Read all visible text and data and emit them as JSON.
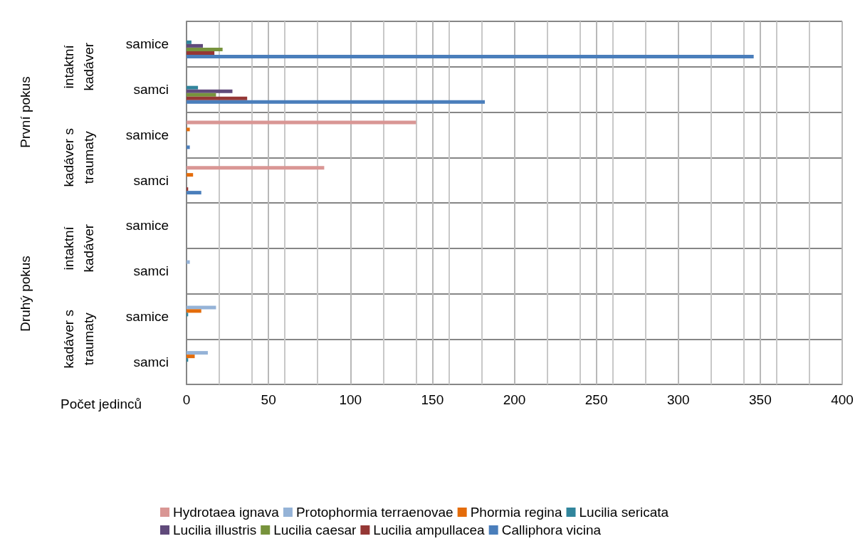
{
  "chart_data": {
    "type": "bar",
    "orientation": "horizontal",
    "xlabel": "Počet jedinců",
    "categories": [
      "samice",
      "samci",
      "samice",
      "samci",
      "samice",
      "samci",
      "samice",
      "samci"
    ],
    "annotations": [
      "První pokus",
      "Druhý pokus",
      "intaktní kadáver",
      "kadáver s traumaty",
      "intaktní kadáver",
      "kadáver s traumaty"
    ],
    "series": [
      {
        "name": "Hydrotaea ignava",
        "color": "#d99694",
        "values": [
          0,
          0,
          140,
          84,
          0,
          0,
          0,
          0
        ]
      },
      {
        "name": "Protophormia terraenovae",
        "color": "#95b3d7",
        "values": [
          0,
          0,
          0,
          0,
          0,
          2,
          18,
          13
        ]
      },
      {
        "name": "Phormia regina",
        "color": "#e46c0a",
        "values": [
          0,
          0,
          2,
          4,
          0,
          0,
          9,
          5
        ]
      },
      {
        "name": "Lucilia sericata",
        "color": "#31859c",
        "values": [
          3,
          7,
          0,
          0,
          0,
          0,
          1,
          1
        ]
      },
      {
        "name": "Lucilia illustris",
        "color": "#604a7b",
        "values": [
          10,
          28,
          0,
          0,
          0,
          0,
          0,
          0
        ]
      },
      {
        "name": "Lucilia caesar",
        "color": "#77933c",
        "values": [
          22,
          18,
          0,
          0,
          0,
          0,
          0,
          0
        ]
      },
      {
        "name": "Lucilia ampullacea",
        "color": "#953735",
        "values": [
          17,
          37,
          0,
          1,
          0,
          0,
          0,
          0
        ]
      },
      {
        "name": "Calliphora vicina",
        "color": "#4a7ebb",
        "values": [
          346,
          182,
          2,
          9,
          0,
          0,
          0,
          0
        ]
      }
    ],
    "xlim": [
      0,
      400
    ],
    "xticks": [
      0,
      50,
      100,
      150,
      200,
      250,
      300,
      350,
      400
    ],
    "grid": true,
    "legend": "bottom"
  }
}
